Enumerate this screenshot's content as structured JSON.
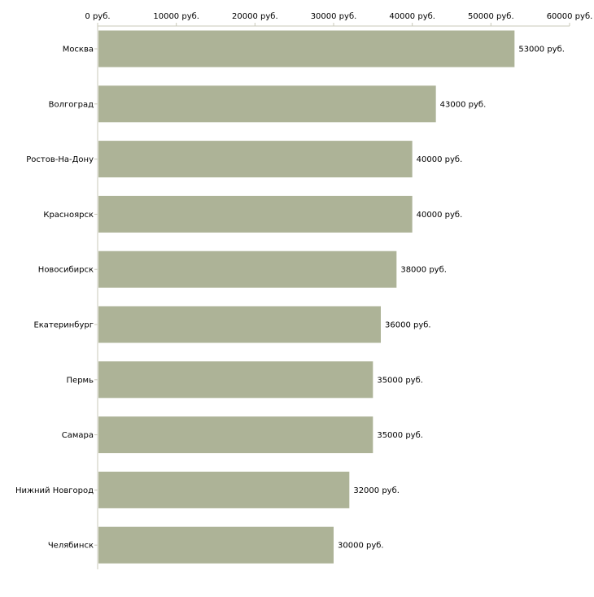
{
  "chart_data": {
    "type": "bar",
    "orientation": "horizontal",
    "title": "",
    "xlabel": "",
    "ylabel": "",
    "unit_suffix": " руб.",
    "xlim": [
      0,
      60000
    ],
    "xticks": [
      0,
      10000,
      20000,
      30000,
      40000,
      50000,
      60000
    ],
    "xtick_labels": [
      "0 руб.",
      "10000 руб.",
      "20000 руб.",
      "30000 руб.",
      "40000 руб.",
      "50000 руб.",
      "60000 руб."
    ],
    "x_axis_position": "top",
    "grid": false,
    "legend": "none",
    "bar_color": "#adb397",
    "categories": [
      "Москва",
      "Волгоград",
      "Ростов-На-Дону",
      "Красноярск",
      "Новосибирск",
      "Екатеринбург",
      "Пермь",
      "Самара",
      "Нижний Новгород",
      "Челябинск"
    ],
    "values": [
      53000,
      43000,
      40000,
      40000,
      38000,
      36000,
      35000,
      35000,
      32000,
      30000
    ],
    "data_labels": [
      "53000 руб.",
      "43000 руб.",
      "40000 руб.",
      "40000 руб.",
      "38000 руб.",
      "36000 руб.",
      "35000 руб.",
      "35000 руб.",
      "32000 руб.",
      "30000 руб."
    ]
  }
}
